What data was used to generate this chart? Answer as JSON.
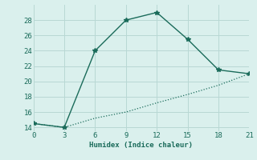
{
  "line1_x": [
    0,
    3,
    6,
    9,
    12,
    15,
    18,
    21
  ],
  "line1_y": [
    14.5,
    14.0,
    24.0,
    28.0,
    29.0,
    25.5,
    21.5,
    21.0
  ],
  "line2_x": [
    0,
    3,
    6,
    9,
    12,
    15,
    18,
    21
  ],
  "line2_y": [
    14.5,
    14.0,
    15.2,
    16.0,
    17.2,
    18.3,
    19.5,
    21.0
  ],
  "line_color": "#1a6b5a",
  "bg_color": "#daf0ed",
  "xlabel": "Humidex (Indice chaleur)",
  "xlim": [
    0,
    21
  ],
  "ylim": [
    13.5,
    30
  ],
  "xticks": [
    0,
    3,
    6,
    9,
    12,
    15,
    18,
    21
  ],
  "yticks": [
    14,
    16,
    18,
    20,
    22,
    24,
    26,
    28
  ],
  "grid_color": "#b8d8d4",
  "marker": "*",
  "markersize": 4,
  "linewidth1": 1.0,
  "linewidth2": 0.9
}
